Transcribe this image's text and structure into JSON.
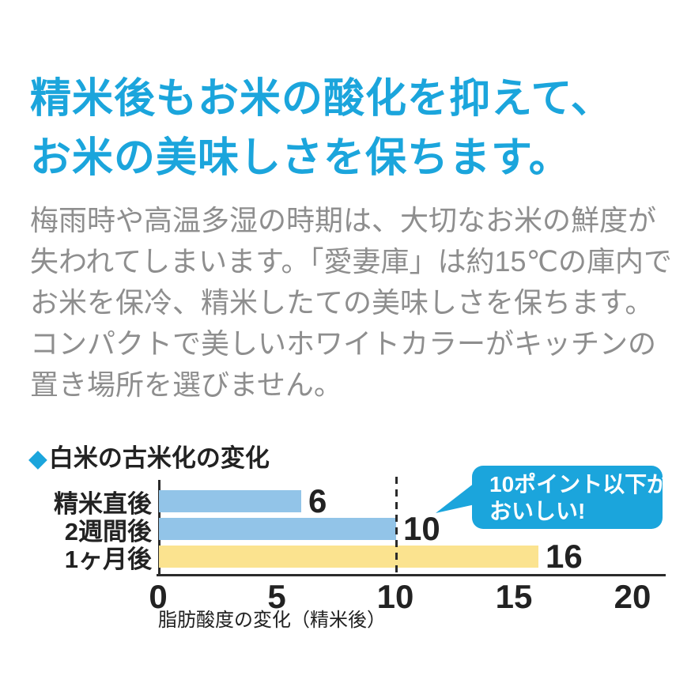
{
  "page": {
    "background": "#ffffff",
    "accent_blue": "#1BA5DC",
    "body_gray": "#8E8E8E",
    "text_black": "#222222"
  },
  "heading": {
    "lines": [
      "精米後もお米の酸化を抑えて、",
      "お米の美味しさを保ちます。"
    ]
  },
  "body": {
    "lines": [
      "梅雨時や高温多湿の時期は、大切なお米の鮮度が",
      "失われてしまいます。「愛妻庫」は約15℃の庫内で",
      "お米を保冷、精米したての美味しさを保ちます。",
      "コンパクトで美しいホワイトカラーがキッチンの",
      "置き場所を選びません。"
    ]
  },
  "chart": {
    "title_marker": "◆",
    "callout": {
      "lines": [
        "10ポイント以下が",
        "おいしい!"
      ],
      "bg": "#1BA5DC",
      "text_color": "#ffffff"
    }
  },
  "chart_data": {
    "type": "bar",
    "orientation": "horizontal",
    "title": "白米の古米化の変化",
    "categories": [
      "精米直後",
      "2週間後",
      "1ヶ月後"
    ],
    "values": [
      6,
      10,
      16
    ],
    "bar_colors": [
      "#92C4E8",
      "#92C4E8",
      "#FBE38F"
    ],
    "value_labels": [
      "6",
      "10",
      "16"
    ],
    "xlabel": "脂肪酸度の変化（精米後）",
    "xlim": [
      0,
      20
    ],
    "xticks": [
      0,
      5,
      10,
      15,
      20
    ],
    "grid": false,
    "reference_line": {
      "x": 10,
      "style": "dashed",
      "color": "#2b2b2b"
    },
    "annotation": "10ポイント以下がおいしい!"
  }
}
